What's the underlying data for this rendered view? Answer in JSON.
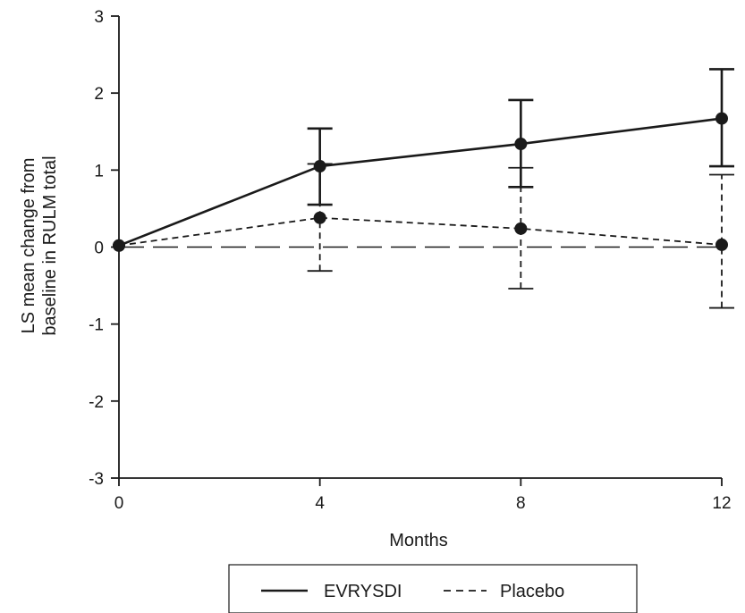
{
  "chart_data": {
    "type": "line",
    "title": "",
    "xlabel": "Months",
    "ylabel_lines": [
      "LS mean change from",
      "baseline in RULM total"
    ],
    "xlim": [
      0,
      12
    ],
    "ylim": [
      -3,
      3
    ],
    "x_ticks": [
      0,
      4,
      8,
      12
    ],
    "y_ticks": [
      -3,
      -2,
      -1,
      0,
      1,
      2,
      3
    ],
    "x_tick_labels": [
      "0",
      "4",
      "8",
      "12"
    ],
    "y_tick_labels": [
      "-3",
      "-2",
      "-1",
      "0",
      "1",
      "2",
      "3"
    ],
    "grid": false,
    "reference_line": {
      "y": 0,
      "style": "long-dash"
    },
    "legend_position": "bottom-center",
    "series": [
      {
        "name": "EVRYSDI",
        "line_style": "solid",
        "color": "#1a1a1a",
        "x": [
          0,
          4,
          8,
          12
        ],
        "y": [
          0.02,
          1.05,
          1.34,
          1.67
        ],
        "err_low": [
          null,
          0.55,
          0.78,
          1.05
        ],
        "err_high": [
          null,
          1.54,
          1.91,
          2.31
        ]
      },
      {
        "name": "Placebo",
        "line_style": "dashed",
        "color": "#1a1a1a",
        "x": [
          0,
          4,
          8,
          12
        ],
        "y": [
          0.02,
          0.38,
          0.24,
          0.03
        ],
        "err_low": [
          null,
          -0.31,
          -0.54,
          -0.79
        ],
        "err_high": [
          null,
          1.08,
          1.03,
          0.94
        ]
      }
    ]
  }
}
